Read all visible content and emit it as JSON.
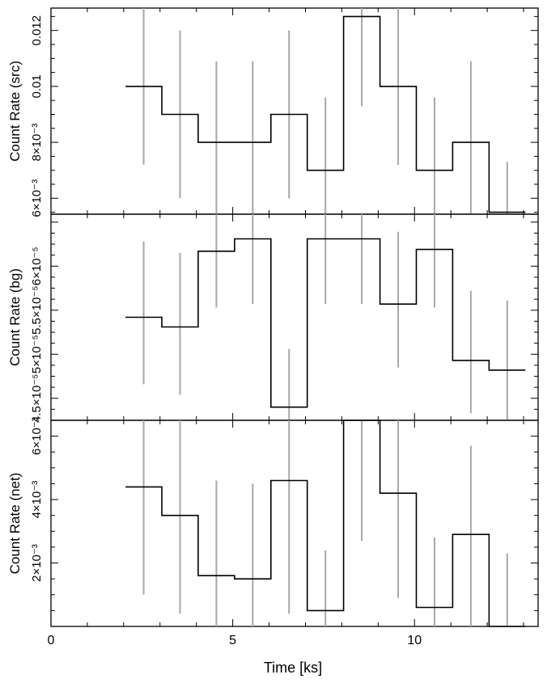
{
  "chart_data": {
    "type": "line",
    "layout": "three stacked panels sharing the x-axis",
    "xlabel": "Time [ks]",
    "xlim": [
      0,
      13.4
    ],
    "x_ticks": [
      {
        "value": 0,
        "label": "0"
      },
      {
        "value": 5,
        "label": "5"
      },
      {
        "value": 10,
        "label": "10"
      }
    ],
    "bin_edges": [
      2.05,
      3.05,
      4.05,
      5.05,
      6.05,
      7.05,
      8.05,
      9.05,
      10.05,
      11.05,
      12.05,
      13.05
    ],
    "bin_centers": [
      2.55,
      3.55,
      4.55,
      5.55,
      6.55,
      7.55,
      8.55,
      9.55,
      10.55,
      11.55,
      12.55
    ],
    "panels": [
      {
        "id": "src",
        "ylabel": "Count Rate (src)",
        "ylim": [
          0.00543,
          0.0128
        ],
        "y_ticks": [
          {
            "value": 0.006,
            "label": "6×10⁻³"
          },
          {
            "value": 0.008,
            "label": "8×10⁻³"
          },
          {
            "value": 0.01,
            "label": "0.01"
          },
          {
            "value": 0.012,
            "label": "0.012"
          }
        ],
        "values": [
          0.01,
          0.009,
          0.008,
          0.008,
          0.009,
          0.007,
          0.0125,
          0.01,
          0.007,
          0.008,
          0.0055
        ],
        "err_low": [
          0.0072,
          0.006,
          0.005,
          0.005,
          0.006,
          0.0043,
          0.0093,
          0.0072,
          0.0043,
          0.005,
          0.0033
        ],
        "err_high": [
          0.0128,
          0.012,
          0.0109,
          0.0109,
          0.012,
          0.0096,
          0.0135,
          0.0128,
          0.0096,
          0.0109,
          0.0073
        ]
      },
      {
        "id": "bg",
        "ylabel": "Count Rate (bg)",
        "ylim": [
          4.25e-05,
          6.59e-05
        ],
        "y_ticks": [
          {
            "value": 4.5e-05,
            "label": "4.5×10⁻⁵"
          },
          {
            "value": 5e-05,
            "label": "5×10⁻⁵"
          },
          {
            "value": 5.5e-05,
            "label": "5.5×10⁻⁵"
          },
          {
            "value": 6e-05,
            "label": "6×10⁻⁵"
          }
        ],
        "values": [
          5.42e-05,
          5.31e-05,
          6.17e-05,
          6.31e-05,
          4.4e-05,
          6.31e-05,
          6.31e-05,
          5.57e-05,
          6.19e-05,
          4.93e-05,
          4.82e-05
        ],
        "err_low": [
          4.66e-05,
          4.54e-05,
          5.53e-05,
          5.57e-05,
          3.74e-05,
          5.57e-05,
          5.57e-05,
          4.85e-05,
          5.53e-05,
          4.33e-05,
          4.2e-05
        ],
        "err_high": [
          6.28e-05,
          6.15e-05,
          6.91e-05,
          7.09e-05,
          5.06e-05,
          7.09e-05,
          7.09e-05,
          6.39e-05,
          6.91e-05,
          5.72e-05,
          5.61e-05
        ]
      },
      {
        "id": "net",
        "ylabel": "Count Rate (net)",
        "ylim": [
          0.0,
          0.0065
        ],
        "y_ticks": [
          {
            "value": 0.002,
            "label": "2×10⁻³"
          },
          {
            "value": 0.004,
            "label": "4×10⁻³"
          },
          {
            "value": 0.006,
            "label": "6×10⁻³"
          }
        ],
        "values": [
          0.0044,
          0.0035,
          0.0016,
          0.0015,
          0.0046,
          0.0005,
          0.0066,
          0.0042,
          0.0006,
          0.0029,
          0.0
        ],
        "err_low": [
          0.001,
          0.0004,
          -0.001,
          -0.001,
          0.0004,
          -0.0014,
          0.0027,
          0.0009,
          -0.0014,
          -0.0005,
          -0.0014
        ],
        "err_high": [
          0.008,
          0.007,
          0.0046,
          0.0045,
          0.009,
          0.0024,
          0.008,
          0.008,
          0.0028,
          0.0057,
          0.0023
        ]
      }
    ]
  }
}
